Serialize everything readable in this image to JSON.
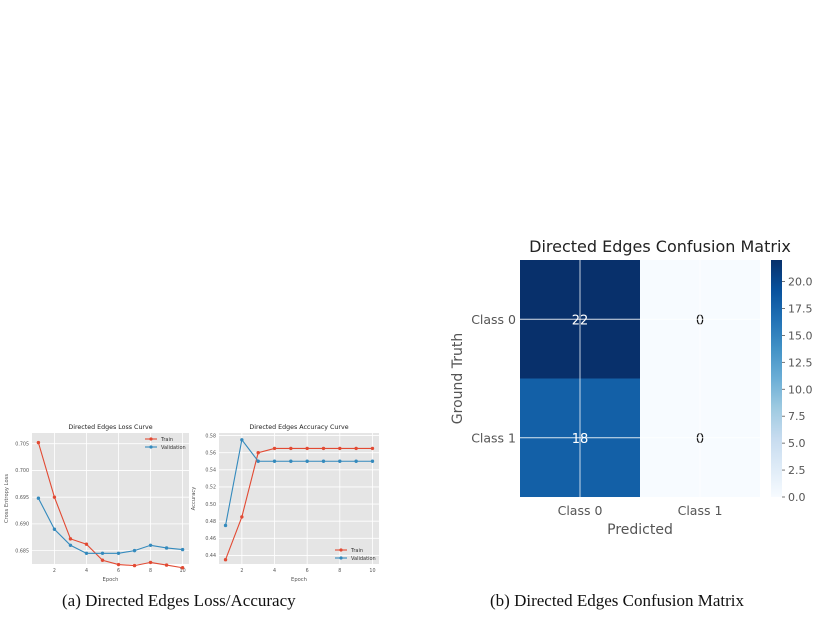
{
  "captions": {
    "a": "(a) Directed Edges Loss/Accuracy",
    "b": "(b) Directed Edges Confusion Matrix"
  },
  "colors": {
    "train": "#e24a33",
    "validation": "#348abd",
    "panel_bg": "#e5e5e5",
    "grid": "#ffffff"
  },
  "chart_data": [
    {
      "type": "line",
      "title": "Directed Edges Loss Curve",
      "xlabel": "Epoch",
      "ylabel": "Cross Entropy Loss",
      "x": [
        1,
        2,
        3,
        4,
        5,
        6,
        7,
        8,
        9,
        10
      ],
      "xticks": [
        "2",
        "4",
        "6",
        "8",
        "10"
      ],
      "yticks": [
        "0.685",
        "0.690",
        "0.695",
        "0.700",
        "0.705"
      ],
      "ylim": [
        0.6825,
        0.707
      ],
      "grid": true,
      "legend": "top-right",
      "series": [
        {
          "name": "Train",
          "values": [
            0.7052,
            0.695,
            0.6872,
            0.6862,
            0.6832,
            0.6824,
            0.6822,
            0.6828,
            0.6823,
            0.6818
          ]
        },
        {
          "name": "Validation",
          "values": [
            0.6948,
            0.689,
            0.686,
            0.6845,
            0.6845,
            0.6845,
            0.685,
            0.686,
            0.6855,
            0.6852
          ]
        }
      ]
    },
    {
      "type": "line",
      "title": "Directed Edges Accuracy Curve",
      "xlabel": "Epoch",
      "ylabel": "Accuracy",
      "x": [
        1,
        2,
        3,
        4,
        5,
        6,
        7,
        8,
        9,
        10
      ],
      "xticks": [
        "2",
        "4",
        "6",
        "8",
        "10"
      ],
      "yticks": [
        "0.44",
        "0.46",
        "0.48",
        "0.50",
        "0.52",
        "0.54",
        "0.56",
        "0.58"
      ],
      "ylim": [
        0.43,
        0.583
      ],
      "grid": true,
      "legend": "bottom-right",
      "series": [
        {
          "name": "Train",
          "values": [
            0.435,
            0.485,
            0.56,
            0.565,
            0.565,
            0.565,
            0.565,
            0.565,
            0.565,
            0.565
          ]
        },
        {
          "name": "Validation",
          "values": [
            0.475,
            0.575,
            0.55,
            0.55,
            0.55,
            0.55,
            0.55,
            0.55,
            0.55,
            0.55
          ]
        }
      ]
    },
    {
      "type": "heatmap",
      "title": "Directed Edges Confusion Matrix",
      "xlabel": "Predicted",
      "ylabel": "Ground Truth",
      "x_categories": [
        "Class 0",
        "Class 1"
      ],
      "y_categories": [
        "Class 0",
        "Class 1"
      ],
      "values": [
        [
          22,
          0
        ],
        [
          18,
          0
        ]
      ],
      "colorbar": {
        "min": 0,
        "max": 22,
        "colormap": "Blues",
        "ticks": [
          "0.0",
          "2.5",
          "5.0",
          "7.5",
          "10.0",
          "12.5",
          "15.0",
          "17.5",
          "20.0"
        ]
      }
    }
  ]
}
